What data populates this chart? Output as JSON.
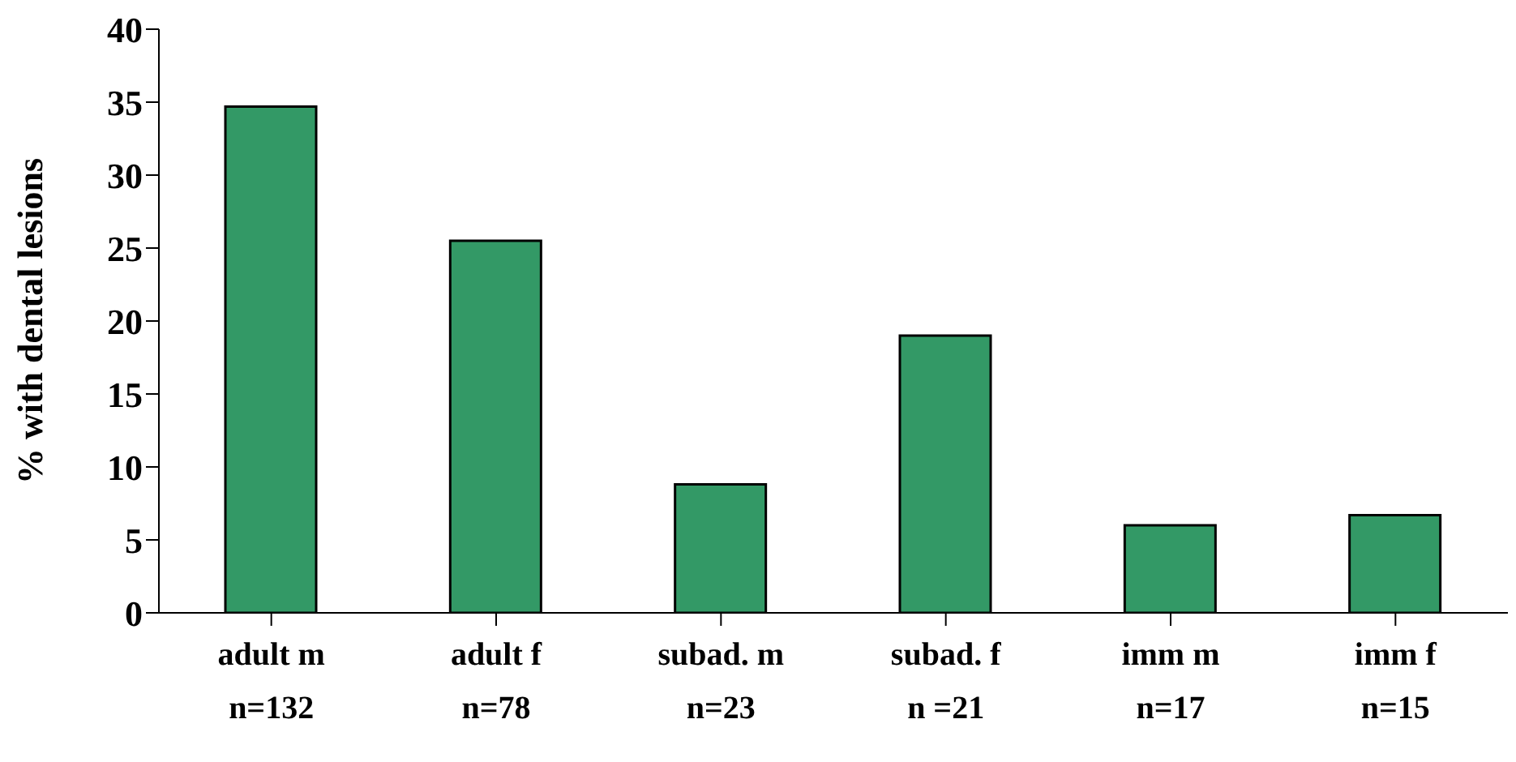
{
  "chart_data": {
    "type": "bar",
    "ylabel": "%  with dental lesions",
    "categories": [
      "adult m\nn=132",
      "adult f\nn=78",
      "subad. m\nn=23",
      "subad. f\nn =21",
      "imm m\nn=17",
      "imm f\nn=15"
    ],
    "values": [
      34.7,
      25.5,
      8.8,
      19.0,
      6.0,
      6.7
    ],
    "color": "#339966",
    "ylim": [
      0,
      40
    ],
    "yticks": [
      0,
      5,
      10,
      15,
      20,
      25,
      30,
      35,
      40
    ],
    "grid": false
  }
}
